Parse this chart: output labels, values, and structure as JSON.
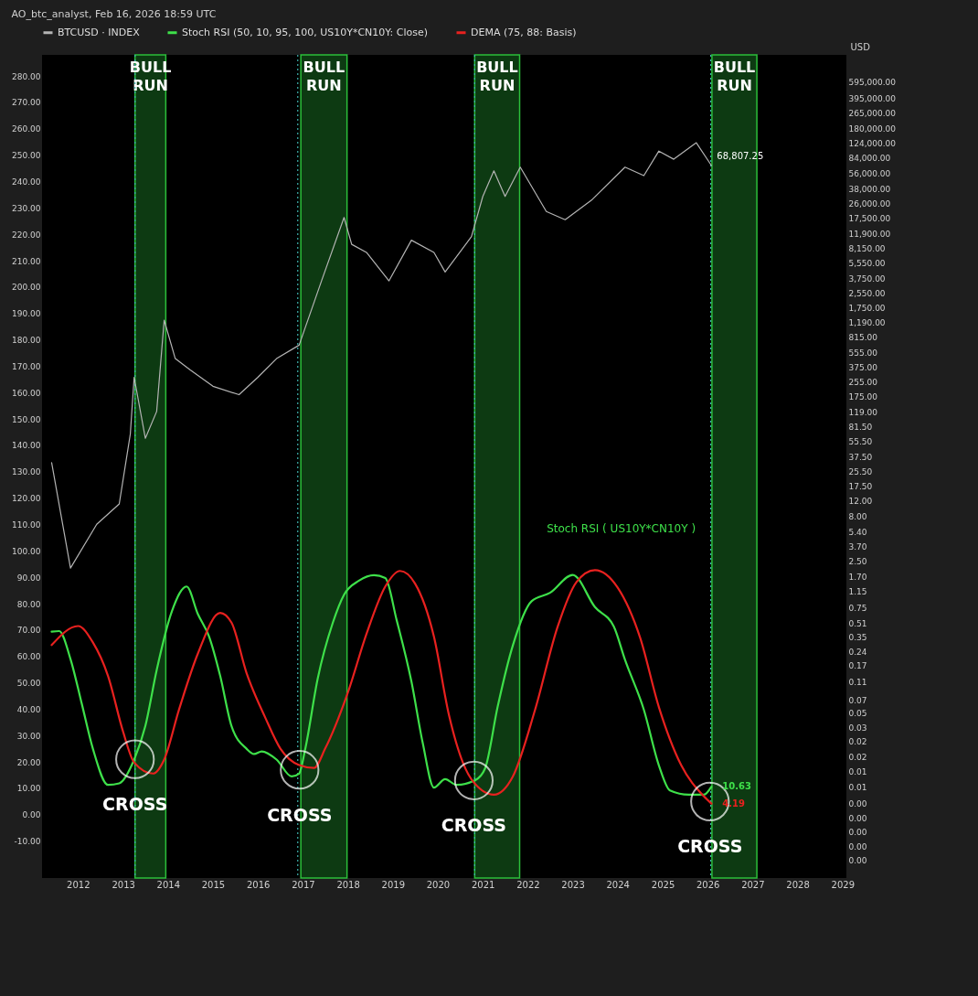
{
  "chart_data": {
    "type": "line",
    "title": "AO_btc_analyst, Feb 16, 2026 18:59 UTC",
    "y2label": "USD",
    "legend": "top",
    "log": "y2",
    "xlim": [
      "2011-03-15",
      "2029-02-01"
    ],
    "xticks": [
      "2012",
      "2013",
      "2014",
      "2015",
      "2016",
      "2017",
      "2018",
      "2019",
      "2020",
      "2021",
      "2022",
      "2023",
      "2024",
      "2025",
      "2026",
      "2027",
      "2028",
      "2029"
    ],
    "ylim": [
      -24,
      288
    ],
    "yticks": [
      {
        "value": -10,
        "label": "-10.00"
      },
      {
        "value": 0,
        "label": "0.00"
      },
      {
        "value": 10,
        "label": "10.00"
      },
      {
        "value": 20,
        "label": "20.00"
      },
      {
        "value": 30,
        "label": "30.00"
      },
      {
        "value": 40,
        "label": "40.00"
      },
      {
        "value": 50,
        "label": "50.00"
      },
      {
        "value": 60,
        "label": "60.00"
      },
      {
        "value": 70,
        "label": "70.00"
      },
      {
        "value": 80,
        "label": "80.00"
      },
      {
        "value": 90,
        "label": "90.00"
      },
      {
        "value": 100,
        "label": "100.00"
      },
      {
        "value": 110,
        "label": "110.00"
      },
      {
        "value": 120,
        "label": "120.00"
      },
      {
        "value": 130,
        "label": "130.00"
      },
      {
        "value": 140,
        "label": "140.00"
      },
      {
        "value": 150,
        "label": "150.00"
      },
      {
        "value": 160,
        "label": "160.00"
      },
      {
        "value": 170,
        "label": "170.00"
      },
      {
        "value": 180,
        "label": "180.00"
      },
      {
        "value": 190,
        "label": "190.00"
      },
      {
        "value": 200,
        "label": "200.00"
      },
      {
        "value": 210,
        "label": "210.00"
      },
      {
        "value": 220,
        "label": "220.00"
      },
      {
        "value": 230,
        "label": "230.00"
      },
      {
        "value": 240,
        "label": "240.00"
      },
      {
        "value": 250,
        "label": "250.00"
      },
      {
        "value": 260,
        "label": "260.00"
      },
      {
        "value": 270,
        "label": "270.00"
      },
      {
        "value": 280,
        "label": "280.00"
      }
    ],
    "y2lim": [
      0.0007,
      1200000
    ],
    "y2ticks": [
      {
        "value": 595000,
        "label": "595,000.00"
      },
      {
        "value": 395000,
        "label": "395,000.00"
      },
      {
        "value": 265000,
        "label": "265,000.00"
      },
      {
        "value": 180000,
        "label": "180,000.00"
      },
      {
        "value": 124000,
        "label": "124,000.00"
      },
      {
        "value": 84000,
        "label": "84,000.00"
      },
      {
        "value": 56000,
        "label": "56,000.00"
      },
      {
        "value": 38000,
        "label": "38,000.00"
      },
      {
        "value": 26000,
        "label": "26,000.00"
      },
      {
        "value": 17500,
        "label": "17,500.00"
      },
      {
        "value": 11900,
        "label": "11,900.00"
      },
      {
        "value": 8150,
        "label": "8,150.00"
      },
      {
        "value": 5550,
        "label": "5,550.00"
      },
      {
        "value": 3750,
        "label": "3,750.00"
      },
      {
        "value": 2550,
        "label": "2,550.00"
      },
      {
        "value": 1750,
        "label": "1,750.00"
      },
      {
        "value": 1190,
        "label": "1,190.00"
      },
      {
        "value": 815,
        "label": "815.00"
      },
      {
        "value": 555,
        "label": "555.00"
      },
      {
        "value": 375,
        "label": "375.00"
      },
      {
        "value": 255,
        "label": "255.00"
      },
      {
        "value": 175,
        "label": "175.00"
      },
      {
        "value": 119,
        "label": "119.00"
      },
      {
        "value": 81.5,
        "label": "81.50"
      },
      {
        "value": 55.5,
        "label": "55.50"
      },
      {
        "value": 37.5,
        "label": "37.50"
      },
      {
        "value": 25.5,
        "label": "25.50"
      },
      {
        "value": 17.5,
        "label": "17.50"
      },
      {
        "value": 12,
        "label": "12.00"
      },
      {
        "value": 8,
        "label": "8.00"
      },
      {
        "value": 5.4,
        "label": "5.40"
      },
      {
        "value": 3.7,
        "label": "3.70"
      },
      {
        "value": 2.5,
        "label": "2.50"
      },
      {
        "value": 1.7,
        "label": "1.70"
      },
      {
        "value": 1.15,
        "label": "1.15"
      },
      {
        "value": 0.75,
        "label": "0.75"
      },
      {
        "value": 0.51,
        "label": "0.51"
      },
      {
        "value": 0.35,
        "label": "0.35"
      },
      {
        "value": 0.24,
        "label": "0.24"
      },
      {
        "value": 0.17,
        "label": "0.17"
      },
      {
        "value": 0.11,
        "label": "0.11"
      },
      {
        "value": 0.07,
        "label": "0.07"
      },
      {
        "value": 0.05,
        "label": "0.05"
      },
      {
        "value": 0.034,
        "label": "0.03"
      },
      {
        "value": 0.024,
        "label": "0.02"
      },
      {
        "value": 0.016,
        "label": "0.02"
      },
      {
        "value": 0.011,
        "label": "0.01"
      },
      {
        "value": 0.0074,
        "label": "0.01"
      },
      {
        "value": 0.0048,
        "label": "0.00"
      },
      {
        "value": 0.0033,
        "label": "0.00"
      },
      {
        "value": 0.0023,
        "label": "0.00"
      },
      {
        "value": 0.0016,
        "label": "0.00"
      },
      {
        "value": 0.0011,
        "label": "0.00"
      }
    ],
    "series": [
      {
        "name": "BTCUSD · INDEX",
        "axis": "y2",
        "color": "#b4b4b4",
        "x": [
          "2011-06",
          "2011-11",
          "2012-06",
          "2012-12",
          "2013-03",
          "2013-04",
          "2013-07",
          "2013-10",
          "2013-12",
          "2014-03",
          "2014-07",
          "2015-01",
          "2015-08",
          "2016-01",
          "2016-06",
          "2016-12",
          "2017-06",
          "2017-12",
          "2018-02",
          "2018-06",
          "2018-12",
          "2019-06",
          "2019-12",
          "2020-03",
          "2020-10",
          "2021-01",
          "2021-04",
          "2021-07",
          "2021-11",
          "2022-06",
          "2022-11",
          "2023-06",
          "2024-03",
          "2024-08",
          "2024-12",
          "2025-04",
          "2025-10",
          "2026-02"
        ],
        "values": [
          32,
          2.1,
          6.5,
          11,
          67,
          290,
          60,
          120,
          1270,
          470,
          350,
          230,
          185,
          290,
          470,
          665,
          3500,
          18000,
          9000,
          7300,
          3500,
          10000,
          7300,
          4400,
          11000,
          31000,
          60000,
          31000,
          66000,
          21000,
          17000,
          28000,
          66000,
          53000,
          100000,
          81000,
          124000,
          68807.25
        ],
        "value_labels": [
          null,
          null,
          null,
          null,
          null,
          null,
          null,
          null,
          null,
          null,
          null,
          null,
          null,
          null,
          null,
          null,
          null,
          null,
          null,
          null,
          null,
          null,
          null,
          null,
          null,
          null,
          null,
          null,
          null,
          null,
          null,
          null,
          null,
          null,
          null,
          null,
          null,
          "68,807.25"
        ]
      },
      {
        "name": "Stoch RSI (50, 10, 95, 100, US10Y*CN10Y: Close)",
        "color": "#3ee04a",
        "x": [
          "2011-06",
          "2011-08",
          "2011-11",
          "2012-02",
          "2012-05",
          "2012-09",
          "2012-12",
          "2013-04",
          "2013-07",
          "2013-10",
          "2014-02",
          "2014-06",
          "2014-09",
          "2014-12",
          "2015-03",
          "2015-06",
          "2015-10",
          "2015-12",
          "2016-02",
          "2016-06",
          "2016-10",
          "2016-12",
          "2017-01-20",
          "2017-05",
          "2017-09",
          "2017-12",
          "2018-04",
          "2018-08",
          "2018-11",
          "2019-02",
          "2019-06",
          "2019-09",
          "2019-12",
          "2020-03",
          "2020-06",
          "2020-11",
          "2021-01-20",
          "2021-05",
          "2021-09",
          "2022-02",
          "2022-07",
          "2023-01",
          "2023-07",
          "2023-12",
          "2024-03",
          "2024-08",
          "2024-12",
          "2025-03",
          "2025-08",
          "2025-12",
          "2026-02"
        ],
        "values": [
          69.4,
          69.6,
          59,
          42,
          25,
          11.3,
          11.9,
          20.9,
          33.6,
          54.8,
          77,
          86.5,
          76,
          67.5,
          52.6,
          33.6,
          25,
          23,
          24,
          20.9,
          14.5,
          15.6,
          25,
          51.6,
          72.8,
          83.4,
          88.7,
          90.8,
          89.7,
          73.8,
          50.5,
          27.2,
          10.3,
          13.5,
          11.3,
          13.1,
          17.6,
          40.8,
          64,
          80.9,
          84.1,
          90.9,
          78.7,
          71.3,
          58.7,
          39.8,
          18.7,
          9.2,
          7.6,
          7.6,
          10.63
        ],
        "value_labels": [
          null,
          null,
          null,
          null,
          null,
          null,
          null,
          null,
          null,
          null,
          null,
          null,
          null,
          null,
          null,
          null,
          null,
          null,
          null,
          null,
          null,
          null,
          null,
          null,
          null,
          null,
          null,
          null,
          null,
          null,
          null,
          null,
          null,
          null,
          null,
          null,
          null,
          null,
          null,
          null,
          null,
          null,
          null,
          null,
          null,
          null,
          null,
          null,
          null,
          null,
          "10.63"
        ]
      },
      {
        "name": "DEMA (75, 88: Basis)",
        "color": "#e8211f",
        "x": [
          "2011-06",
          "2012-01",
          "2012-05",
          "2012-09",
          "2013-01",
          "2013-04",
          "2013-09",
          "2013-12",
          "2014-04",
          "2014-09",
          "2015-03",
          "2015-06",
          "2015-10",
          "2016-03",
          "2016-07",
          "2016-12",
          "2017-04",
          "2017-07",
          "2018-01",
          "2018-06",
          "2018-11",
          "2019-03",
          "2019-07",
          "2019-12",
          "2020-04",
          "2020-10",
          "2021-04",
          "2021-09",
          "2022-03",
          "2022-09",
          "2023-02",
          "2023-07",
          "2024-01",
          "2024-07",
          "2024-12",
          "2025-06",
          "2025-12",
          "2026-02"
        ],
        "values": [
          64.3,
          71.5,
          65.3,
          52.6,
          31.5,
          19.8,
          15.6,
          20.9,
          39.9,
          61.1,
          76.5,
          72.8,
          53.7,
          36.8,
          25.1,
          18.8,
          17.7,
          25.1,
          46.3,
          68.5,
          86.5,
          92.4,
          87.6,
          67.5,
          37.8,
          13.4,
          7.6,
          14.4,
          39.7,
          71.3,
          88.2,
          92.7,
          86.1,
          67.2,
          40.8,
          18.7,
          7.0,
          4.19
        ],
        "value_labels": [
          null,
          null,
          null,
          null,
          null,
          null,
          null,
          null,
          null,
          null,
          null,
          null,
          null,
          null,
          null,
          null,
          null,
          null,
          null,
          null,
          null,
          null,
          null,
          null,
          null,
          null,
          null,
          null,
          null,
          null,
          null,
          null,
          null,
          null,
          null,
          null,
          null,
          "4.19"
        ]
      }
    ],
    "bands": [
      {
        "axis": "x",
        "from": "2013-04-08",
        "to": "2013-12-14",
        "label": "BULL RUN",
        "color": "#2bbf3a"
      },
      {
        "axis": "x",
        "from": "2016-12-15",
        "to": "2017-12-25",
        "label": "BULL RUN",
        "color": "#2bbf3a"
      },
      {
        "axis": "x",
        "from": "2020-10-27",
        "to": "2021-10-27",
        "label": "BULL RUN",
        "color": "#2bbf3a"
      },
      {
        "axis": "x",
        "from": "2026-02-05",
        "to": "2027-02-05",
        "label": "BULL RUN",
        "color": "#2bbf3a"
      }
    ],
    "ref_lines": [
      {
        "axis": "x",
        "value": "2013-04-08",
        "color": "#3fb6b0",
        "line_style": "dotted"
      },
      {
        "axis": "x",
        "value": "2016-11-20",
        "color": "#3fb6b0",
        "line_style": "dotted"
      },
      {
        "axis": "x",
        "value": "2020-10-27",
        "color": "#3fb6b0",
        "line_style": "dotted"
      },
      {
        "axis": "x",
        "value": "2026-01-26",
        "color": "#3fb6b0",
        "line_style": "dotted"
      }
    ],
    "annotations": [
      {
        "text": "CROSS",
        "x": "2013-04-08",
        "y": 21
      },
      {
        "text": "CROSS",
        "x": "2016-12-05",
        "y": 17
      },
      {
        "text": "CROSS",
        "x": "2020-10-20",
        "y": 13
      },
      {
        "text": "CROSS",
        "x": "2026-01-20",
        "y": 5
      },
      "Stoch RSI ( US10Y*CN10Y )"
    ]
  }
}
